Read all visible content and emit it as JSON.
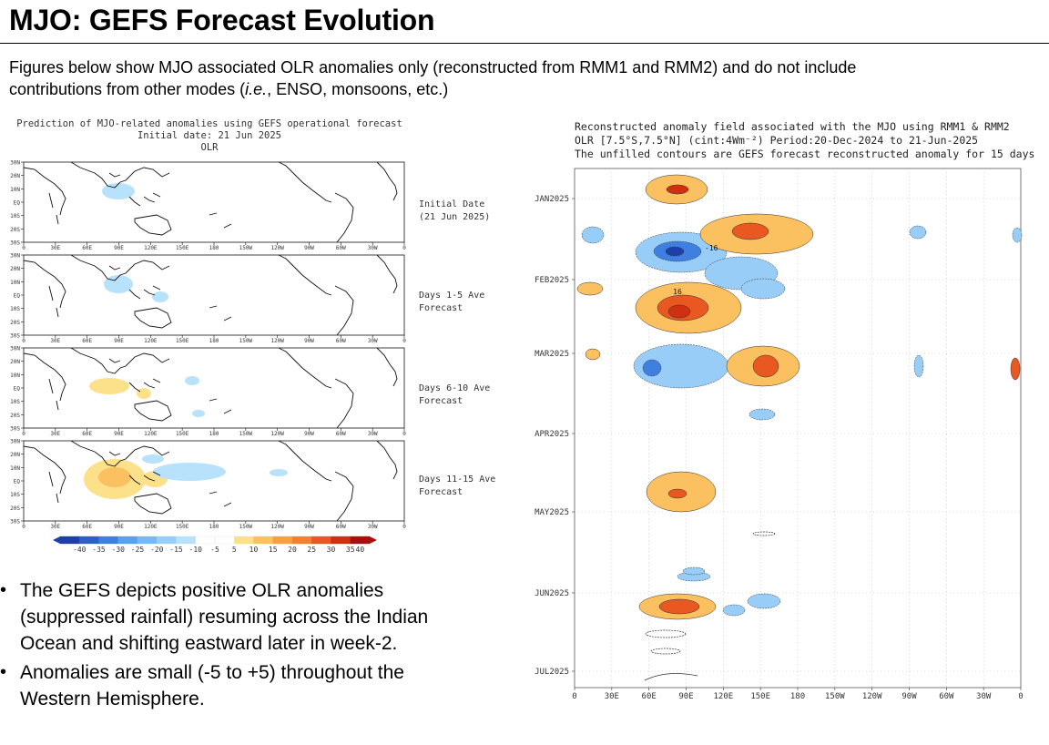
{
  "page": {
    "title": "MJO: GEFS Forecast Evolution",
    "intro_line1": "Figures below show MJO associated OLR anomalies only (reconstructed from RMM1 and RMM2) and do not include",
    "intro_line2_pre": "contributions from other modes (",
    "intro_line2_italic": "i.e.",
    "intro_line2_post": ", ENSO, monsoons, etc.)"
  },
  "left_figure": {
    "title_line1": "Prediction of MJO-related anomalies using GEFS operational forecast",
    "title_line2": "Initial date: 21 Jun 2025",
    "title_line3": "OLR",
    "lat_labels": [
      "30N",
      "20N",
      "10N",
      "EQ",
      "10S",
      "20S",
      "30S"
    ],
    "lon_labels": [
      "0",
      "30E",
      "60E",
      "90E",
      "120E",
      "150E",
      "180",
      "150W",
      "120W",
      "90W",
      "60W",
      "30W",
      "0"
    ],
    "panels": [
      {
        "label_line1": "Initial Date",
        "label_line2": "(21 Jun 2025)"
      },
      {
        "label_line1": "Days 1-5 Ave",
        "label_line2": "Forecast"
      },
      {
        "label_line1": "Days 6-10 Ave",
        "label_line2": "Forecast"
      },
      {
        "label_line1": "Days 11-15 Ave",
        "label_line2": "Forecast"
      }
    ],
    "colorbar": {
      "labels": [
        "-40",
        "-35",
        "-30",
        "-25",
        "-20",
        "-15",
        "-10",
        "-5",
        "5",
        "10",
        "15",
        "20",
        "25",
        "30",
        "35",
        "40"
      ],
      "colors": [
        "#1f3fa8",
        "#2f5ec8",
        "#3f7fe0",
        "#5a9ff0",
        "#78b8f5",
        "#98cdf8",
        "#b8e2fb",
        "#ffffff",
        "#ffffff",
        "#fde08a",
        "#fbc060",
        "#f8a040",
        "#f28030",
        "#e85820",
        "#d03010",
        "#a81010"
      ]
    }
  },
  "bullets": [
    "The GEFS depicts positive OLR anomalies (suppressed rainfall) resuming across the Indian Ocean and shifting eastward later in week-2.",
    "Anomalies are small (-5 to +5) throughout the Western Hemisphere."
  ],
  "right_figure": {
    "title_line1": "Reconstructed anomaly field associated with the MJO using RMM1 & RMM2",
    "title_line2": "OLR [7.5°S,7.5°N] (cint:4Wm⁻²) Period:20-Dec-2024 to 21-Jun-2025",
    "title_line3": "The unfilled contours are GEFS forecast reconstructed anomaly for 15 days",
    "time_labels": [
      "JAN2025",
      "FEB2025",
      "MAR2025",
      "APR2025",
      "MAY2025",
      "JUN2025",
      "JUL2025"
    ],
    "lon_labels": [
      "0",
      "30E",
      "60E",
      "90E",
      "120E",
      "150E",
      "180",
      "150W",
      "120W",
      "90W",
      "60W",
      "30W",
      "0"
    ],
    "contour_labels": [
      "-16",
      "16"
    ]
  }
}
